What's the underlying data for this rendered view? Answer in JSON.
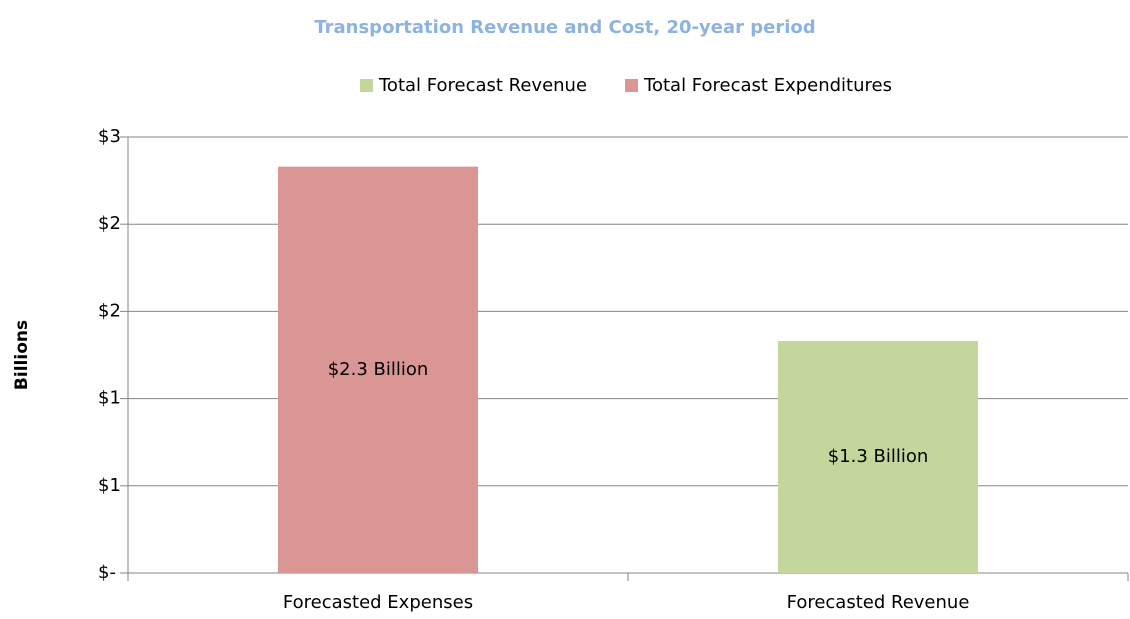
{
  "chart_data": {
    "type": "bar",
    "title": "Transportation Revenue and Cost, 20-year period",
    "y_label": "Billions",
    "categories": [
      "Forecasted Expenses",
      "Forecasted Revenue"
    ],
    "series": [
      {
        "name": "Total Forecast Revenue",
        "color": "#c3d69b",
        "values": [
          null,
          1.33
        ],
        "value_labels": [
          null,
          "$1.3 Billion"
        ]
      },
      {
        "name": "Total Forecast Expenditures",
        "color": "#d99694",
        "values": [
          2.33,
          null
        ],
        "value_labels": [
          "$2.3 Billion",
          null
        ]
      }
    ],
    "ylim": [
      0,
      2.5
    ],
    "yticks": [
      {
        "value": 0,
        "label": "$-"
      },
      {
        "value": 0.5,
        "label": "$1"
      },
      {
        "value": 1,
        "label": "$1"
      },
      {
        "value": 1.5,
        "label": "$2"
      },
      {
        "value": 2,
        "label": "$2"
      },
      {
        "value": 2.5,
        "label": "$3"
      }
    ],
    "grid": true,
    "legend": "top"
  }
}
